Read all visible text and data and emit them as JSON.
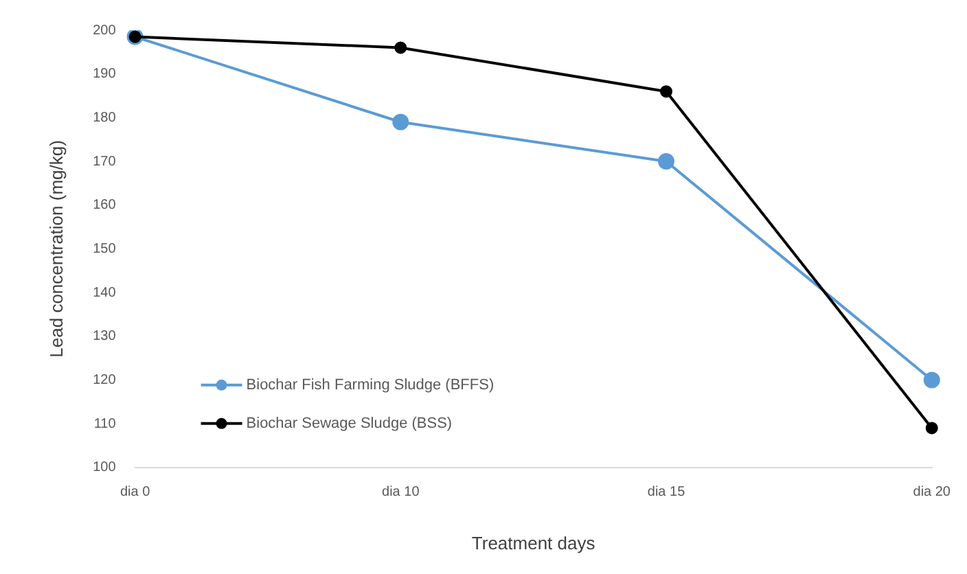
{
  "chart_data": {
    "type": "line",
    "xlabel": "Treatment days",
    "ylabel": "Lead concentration (mg/kg)",
    "categories": [
      "dia 0",
      "dia 10",
      "dia 15",
      "dia 20"
    ],
    "series": [
      {
        "name": "Biochar Fish Farming Sludge (BFFS)",
        "color": "#5b9bd5",
        "values": [
          198.5,
          179,
          170,
          120
        ]
      },
      {
        "name": "Biochar Sewage Sludge (BSS)",
        "color": "#000000",
        "values": [
          198.5,
          196,
          186,
          109
        ]
      }
    ],
    "ylim": [
      100,
      200
    ],
    "yticks": [
      100,
      110,
      120,
      130,
      140,
      150,
      160,
      170,
      180,
      190,
      200
    ],
    "grid": false,
    "legend": "bottom left",
    "marker": "circle",
    "line_style": "solid"
  }
}
